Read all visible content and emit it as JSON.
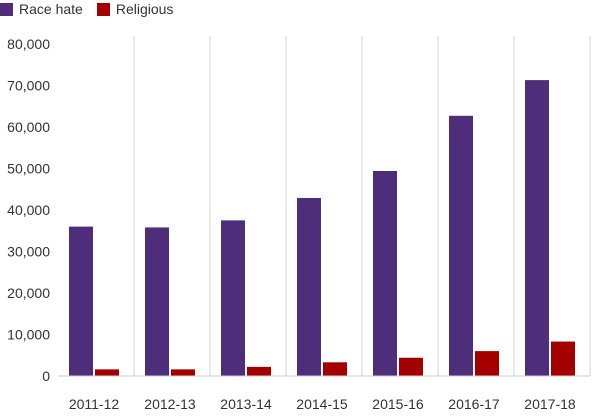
{
  "chart_data": {
    "type": "bar",
    "categories": [
      "2011-12",
      "2012-13",
      "2013-14",
      "2014-15",
      "2015-16",
      "2016-17",
      "2017-18"
    ],
    "series": [
      {
        "name": "Race hate",
        "color": "#4e2e7b",
        "values": [
          36000,
          35800,
          37500,
          42900,
          49400,
          62700,
          71300
        ]
      },
      {
        "name": "Religious",
        "color": "#a50000",
        "values": [
          1600,
          1600,
          2200,
          3300,
          4400,
          6000,
          8300
        ]
      }
    ],
    "ylim": [
      0,
      80000
    ],
    "yticks": [
      "0",
      "10,000",
      "20,000",
      "30,000",
      "40,000",
      "50,000",
      "60,000",
      "70,000",
      "80,000"
    ],
    "ytick_values": [
      0,
      10000,
      20000,
      30000,
      40000,
      50000,
      60000,
      70000,
      80000
    ],
    "grid": "vertical",
    "legend_position": "top-left",
    "title": "",
    "xlabel": "",
    "ylabel": ""
  }
}
